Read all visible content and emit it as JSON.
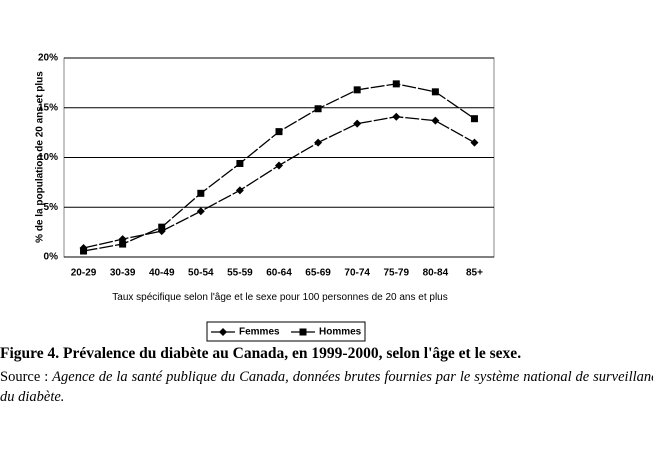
{
  "chart_data": {
    "type": "line",
    "y_label": "% de la population de 20 ans et plus",
    "x_label": "Taux spécifique selon l'âge et le sexe pour 100 personnes de 20 ans et plus",
    "categories": [
      "20-29",
      "30-39",
      "40-49",
      "50-54",
      "55-59",
      "60-64",
      "65-69",
      "70-74",
      "75-79",
      "80-84",
      "85+"
    ],
    "series": [
      {
        "name": "Femmes",
        "color": "#000000",
        "marker": "diamond",
        "values": [
          0.9,
          1.8,
          2.6,
          4.6,
          6.7,
          9.2,
          11.5,
          13.4,
          14.1,
          13.7,
          11.5
        ]
      },
      {
        "name": "Hommes",
        "color": "#000000",
        "marker": "square",
        "values": [
          0.6,
          1.3,
          3.0,
          6.4,
          9.4,
          12.6,
          14.9,
          16.8,
          17.4,
          16.6,
          13.9
        ]
      }
    ],
    "ylim": [
      0,
      20
    ],
    "yticks": [
      {
        "value": 0,
        "label": "0%"
      },
      {
        "value": 5,
        "label": "5%"
      },
      {
        "value": 10,
        "label": "10%"
      },
      {
        "value": 15,
        "label": "15%"
      },
      {
        "value": 20,
        "label": "20%"
      }
    ],
    "grid": true,
    "legend": "bottom"
  },
  "caption": "Figure 4. Prévalence du diabète au Canada, en 1999-2000, selon l'âge et le sexe.",
  "source_label": "Source :",
  "source_text": "Agence de la santé publique du Canada, données brutes fournies par le système national de surveillance du diabète."
}
